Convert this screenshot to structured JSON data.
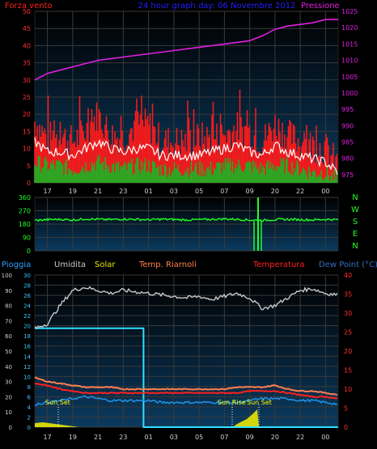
{
  "chart_data": [
    {
      "type": "line",
      "panel": "wind-pressure",
      "title": "24 hour graph day: 06 Novembre 2012",
      "left_label": "Forza vento",
      "right_label": "Pressione",
      "x_ticks": [
        "17",
        "19",
        "21",
        "23",
        "01",
        "03",
        "05",
        "07",
        "09",
        "20",
        "22",
        "00"
      ],
      "left_ticks": [
        "0",
        "5",
        "10",
        "15",
        "20",
        "25",
        "30",
        "35",
        "40",
        "45",
        "50"
      ],
      "right_ticks": [
        "975",
        "980",
        "985",
        "990",
        "995",
        "1000",
        "1005",
        "1010",
        "1015",
        "1020",
        "1025"
      ],
      "ylim_left": [
        0,
        50
      ],
      "ylim_right": [
        972.5,
        1025
      ],
      "series": [
        {
          "name": "Forza vento",
          "color": "#ff1a1a",
          "x": [
            0,
            1,
            2,
            3,
            4,
            5,
            6,
            7,
            8,
            9,
            10,
            11,
            12,
            13,
            14,
            15,
            16,
            17,
            18,
            19,
            20,
            21,
            22,
            23,
            24
          ],
          "values": [
            18,
            13,
            14,
            12,
            15,
            20,
            14,
            13,
            17,
            17,
            12,
            12,
            12,
            13,
            13,
            14,
            16,
            15,
            12,
            17,
            14,
            12,
            11,
            10,
            5
          ]
        },
        {
          "name": "",
          "color": "#ffffff",
          "x": [
            0,
            1,
            2,
            3,
            4,
            5,
            6,
            7,
            8,
            9,
            10,
            11,
            12,
            13,
            14,
            15,
            16,
            17,
            18,
            19,
            20,
            21,
            22,
            23,
            24
          ],
          "values": [
            12,
            9,
            9,
            8,
            10,
            12,
            10,
            9,
            10,
            10,
            8,
            8,
            8,
            8,
            9,
            10,
            11,
            9,
            8,
            11,
            9,
            8,
            7,
            6,
            3
          ]
        },
        {
          "name": "",
          "color": "#22b022",
          "x": [
            0,
            1,
            2,
            3,
            4,
            5,
            6,
            7,
            8,
            9,
            10,
            11,
            12,
            13,
            14,
            15,
            16,
            17,
            18,
            19,
            20,
            21,
            22,
            23,
            24
          ],
          "values": [
            6,
            5,
            5,
            4,
            5,
            6,
            5,
            4,
            5,
            5,
            4,
            4,
            4,
            4,
            4,
            5,
            5,
            5,
            4,
            5,
            5,
            4,
            3,
            3,
            1
          ]
        },
        {
          "name": "Pressione",
          "axis": "right",
          "color": "#e020e0",
          "x": [
            0,
            1,
            2,
            3,
            4,
            5,
            6,
            7,
            8,
            9,
            10,
            11,
            12,
            13,
            14,
            15,
            16,
            17,
            18,
            19,
            20,
            21,
            22,
            23,
            24
          ],
          "values": [
            1004,
            1006,
            1007,
            1008,
            1009,
            1010,
            1010.5,
            1011,
            1011.5,
            1012,
            1012.5,
            1013,
            1013.5,
            1014,
            1014.5,
            1015,
            1015.5,
            1016,
            1017.5,
            1019.5,
            1020.5,
            1021,
            1021.5,
            1022.5,
            1022.5
          ]
        }
      ]
    },
    {
      "type": "line",
      "panel": "wind-direction",
      "left_ticks": [
        "0",
        "90",
        "180",
        "270",
        "360"
      ],
      "right_labels": [
        "N",
        "W",
        "S",
        "E",
        "N"
      ],
      "ylim": [
        0,
        360
      ],
      "series": [
        {
          "name": "",
          "color": "#22ff22",
          "x": [
            0,
            1,
            2,
            3,
            4,
            5,
            6,
            7,
            8,
            9,
            10,
            11,
            12,
            13,
            14,
            15,
            16,
            17,
            18,
            19,
            20,
            21,
            22,
            23,
            24
          ],
          "values": [
            205,
            210,
            212,
            208,
            215,
            212,
            210,
            214,
            212,
            209,
            213,
            211,
            208,
            210,
            212,
            215,
            212,
            207,
            205,
            210,
            212,
            210,
            208,
            212,
            210
          ]
        }
      ]
    },
    {
      "type": "line",
      "panel": "rain-humidity-temp",
      "legend": [
        "Pioggia",
        "Umidita",
        "Solar",
        "Temp. Riarnoli",
        "Temperatura",
        "Dew Point (°C)"
      ],
      "annotations": [
        "Sun Set",
        "Sun Rise",
        "Sun Set"
      ],
      "humidity_ticks": [
        "0",
        "10",
        "20",
        "30",
        "40",
        "50",
        "60",
        "70",
        "80",
        "90",
        "100"
      ],
      "rain_ticks": [
        "0",
        "2",
        "4",
        "6",
        "8",
        "10",
        "12",
        "14",
        "16",
        "18",
        "20",
        "22",
        "24",
        "26",
        "28",
        "30"
      ],
      "temp_ticks": [
        "0",
        "5",
        "10",
        "15",
        "20",
        "25",
        "30",
        "35",
        "40"
      ],
      "ylim_humidity": [
        0,
        100
      ],
      "ylim_rain": [
        0,
        30
      ],
      "ylim_temp": [
        0,
        40
      ],
      "series": [
        {
          "name": "Umidita",
          "axis": "humidity",
          "color": "#c8c8c8",
          "x": [
            0,
            1,
            2,
            3,
            4,
            5,
            6,
            7,
            8,
            9,
            10,
            11,
            12,
            13,
            14,
            15,
            16,
            17,
            18,
            19,
            20,
            21,
            22,
            23,
            24
          ],
          "values": [
            65,
            68,
            80,
            90,
            92,
            90,
            88,
            90,
            89,
            88,
            87,
            86,
            85,
            86,
            84,
            86,
            88,
            85,
            78,
            80,
            85,
            90,
            91,
            88,
            87
          ]
        },
        {
          "name": "Temp. Riarnoli",
          "axis": "temp",
          "color": "#ff8050",
          "x": [
            0,
            1,
            2,
            3,
            4,
            5,
            6,
            7,
            8,
            9,
            10,
            11,
            12,
            13,
            14,
            15,
            16,
            17,
            18,
            19,
            20,
            21,
            22,
            23,
            24
          ],
          "values": [
            13,
            12,
            11.5,
            11,
            10.5,
            10.5,
            10.5,
            10,
            10,
            10,
            10,
            10,
            10,
            10,
            10,
            10,
            10.5,
            10.5,
            10.5,
            11,
            10,
            9.5,
            9.5,
            9,
            8.5
          ]
        },
        {
          "name": "Temperatura",
          "axis": "temp",
          "color": "#ff2020",
          "x": [
            0,
            1,
            2,
            3,
            4,
            5,
            6,
            7,
            8,
            9,
            10,
            11,
            12,
            13,
            14,
            15,
            16,
            17,
            18,
            19,
            20,
            21,
            22,
            23,
            24
          ],
          "values": [
            11.5,
            11,
            10,
            9.5,
            9,
            9,
            9,
            9,
            9,
            9,
            9,
            9,
            9,
            9,
            9,
            9,
            9,
            9.5,
            9.5,
            9.5,
            9,
            8.5,
            8,
            8,
            7.5
          ]
        },
        {
          "name": "Dew Point (°C)",
          "axis": "temp",
          "color": "#2090e0",
          "x": [
            0,
            1,
            2,
            3,
            4,
            5,
            6,
            7,
            8,
            9,
            10,
            11,
            12,
            13,
            14,
            15,
            16,
            17,
            18,
            19,
            20,
            21,
            22,
            23,
            24
          ],
          "values": [
            6,
            6.5,
            7,
            7.5,
            8,
            7.5,
            7,
            7,
            7,
            7,
            6.5,
            6.5,
            6.5,
            6.5,
            6.5,
            6.5,
            6.5,
            7,
            7.5,
            7.5,
            7.5,
            7,
            7,
            6.5,
            6
          ]
        },
        {
          "name": "Pioggia",
          "axis": "rain",
          "color": "#30e0ff",
          "x": [
            0,
            8.6,
            8.6,
            24
          ],
          "values": [
            19.5,
            19.5,
            0,
            0
          ]
        },
        {
          "name": "Solar",
          "axis": "humidity",
          "color": "#e8e800",
          "x": [
            0,
            1,
            2,
            3,
            4,
            9.5,
            10,
            10.5,
            11,
            11.5,
            12,
            12.5,
            13,
            24
          ],
          "values": [
            2,
            3,
            2,
            1,
            0,
            0,
            0,
            0,
            0,
            0,
            0,
            0,
            0,
            0
          ]
        }
      ]
    }
  ]
}
